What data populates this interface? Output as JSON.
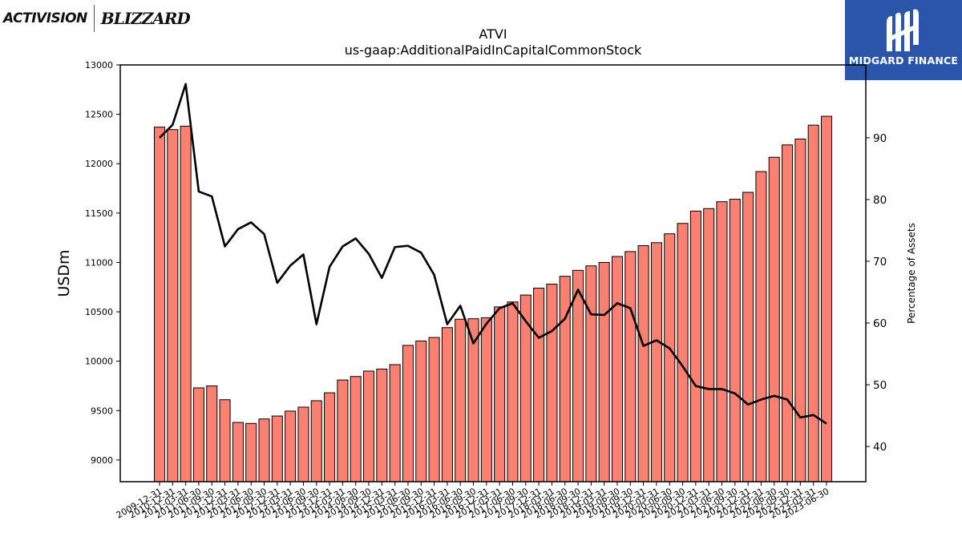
{
  "logos": {
    "left_part1": "ACTIVISION",
    "left_part2": "BLIZZARD",
    "right_brand": "MIDGARD FINANCE"
  },
  "colors": {
    "bar_fill": "#fa8072",
    "bar_edge": "#000000",
    "line": "#000000",
    "brand_blue": "#2a55a8"
  },
  "chart_data": {
    "type": "bar",
    "title": "ATVI",
    "subtitle": "us-gaap:AdditionalPaidInCapitalCommonStock",
    "ylabel": "USDm",
    "y2label": "Percentage of Assets",
    "ylim": [
      8780,
      13000
    ],
    "y2lim": [
      34.3,
      101.8
    ],
    "yticks": [
      9000,
      9500,
      10000,
      10500,
      11000,
      11500,
      12000,
      12500,
      13000
    ],
    "y2ticks": [
      40,
      50,
      60,
      70,
      80,
      90
    ],
    "grid": false,
    "categories": [
      "2009-12-31",
      "2010-12-31",
      "2011-03-31",
      "2011-06-30",
      "2011-09-30",
      "2011-12-31",
      "2012-03-31",
      "2012-06-30",
      "2012-09-30",
      "2012-12-31",
      "2013-03-31",
      "2013-06-30",
      "2013-09-30",
      "2013-12-31",
      "2014-03-31",
      "2014-06-30",
      "2014-09-30",
      "2014-12-31",
      "2015-03-31",
      "2015-06-30",
      "2015-09-30",
      "2015-12-31",
      "2016-03-31",
      "2016-06-30",
      "2016-09-30",
      "2016-12-31",
      "2017-03-31",
      "2017-06-30",
      "2017-09-30",
      "2017-12-31",
      "2018-03-31",
      "2018-06-30",
      "2018-09-30",
      "2018-12-31",
      "2019-03-31",
      "2019-06-30",
      "2019-09-30",
      "2019-12-31",
      "2020-03-31",
      "2020-06-30",
      "2020-09-30",
      "2020-12-31",
      "2021-03-31",
      "2021-06-30",
      "2021-09-30",
      "2021-12-31",
      "2022-03-31",
      "2022-06-30",
      "2022-09-30",
      "2022-12-31",
      "2023-03-31",
      "2023-06-30"
    ],
    "series": [
      {
        "name": "",
        "kind": "bar",
        "axis": "left",
        "values": [
          12370,
          12345,
          12380,
          9730,
          9750,
          9610,
          9380,
          9370,
          9415,
          9445,
          9495,
          9535,
          9600,
          9680,
          9810,
          9845,
          9900,
          9920,
          9965,
          10160,
          10205,
          10240,
          10340,
          10425,
          10430,
          10440,
          10550,
          10600,
          10670,
          10740,
          10780,
          10860,
          10920,
          10965,
          11000,
          11060,
          11110,
          11170,
          11200,
          11290,
          11395,
          11520,
          11545,
          11615,
          11640,
          11710,
          11920,
          12065,
          12190,
          12250,
          12390,
          12480
        ]
      },
      {
        "name": "",
        "kind": "line",
        "axis": "right",
        "values": [
          90.0,
          92.1,
          98.7,
          81.3,
          80.5,
          72.4,
          75.2,
          76.3,
          74.4,
          66.5,
          69.3,
          71.1,
          59.8,
          69.1,
          72.4,
          73.7,
          71.2,
          67.3,
          72.3,
          72.5,
          71.4,
          67.8,
          59.8,
          62.8,
          56.7,
          59.9,
          62.4,
          63.2,
          60.3,
          57.6,
          58.7,
          60.7,
          65.4,
          61.4,
          61.3,
          63.2,
          62.4,
          56.3,
          57.2,
          55.9,
          53.0,
          49.8,
          49.3,
          49.3,
          48.6,
          46.8,
          47.6,
          48.2,
          47.6,
          44.7,
          45.1,
          43.7
        ]
      }
    ]
  }
}
